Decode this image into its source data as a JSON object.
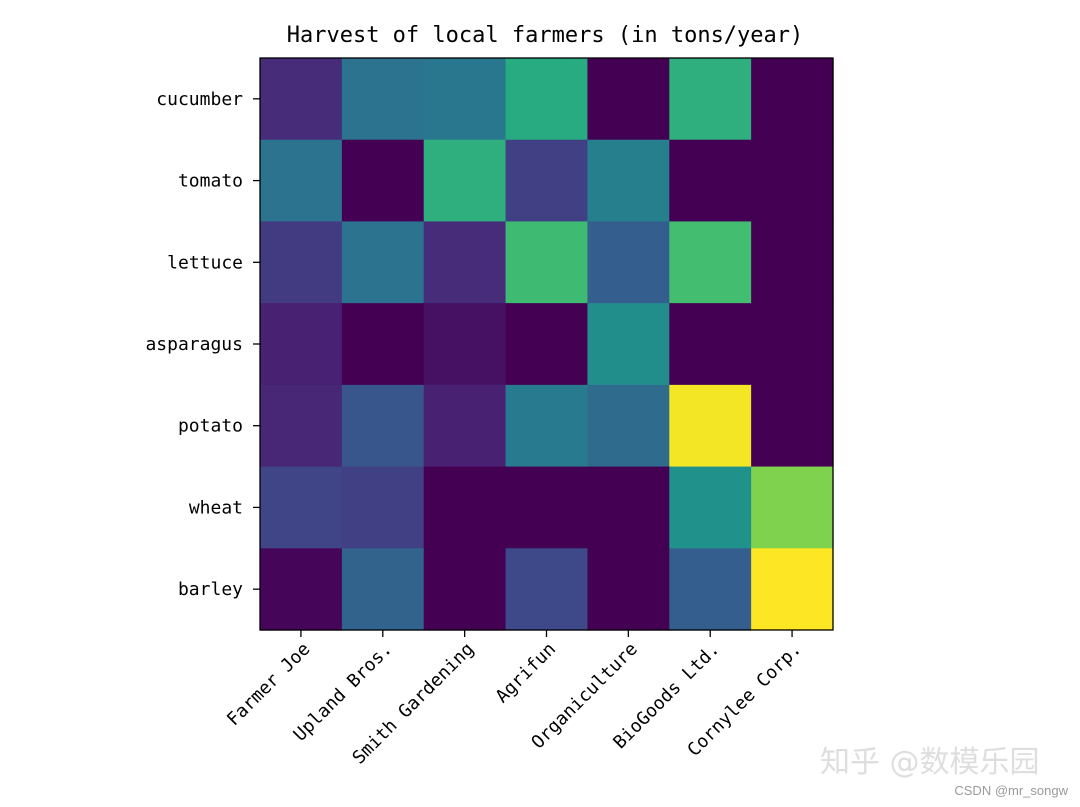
{
  "chart_data": {
    "type": "heatmap",
    "title": "Harvest of local farmers (in tons/year)",
    "x_categories": [
      "Farmer Joe",
      "Upland Bros.",
      "Smith Gardening",
      "Agrifun",
      "Organiculture",
      "BioGoods Ltd.",
      "Cornylee Corp."
    ],
    "y_categories": [
      "cucumber",
      "tomato",
      "lettuce",
      "asparagus",
      "potato",
      "wheat",
      "barley"
    ],
    "values": [
      [
        0.8,
        2.4,
        2.5,
        3.9,
        0.0,
        4.0,
        0.0
      ],
      [
        2.4,
        0.0,
        4.0,
        1.2,
        2.7,
        0.0,
        0.0
      ],
      [
        1.1,
        2.4,
        0.8,
        4.3,
        1.9,
        4.4,
        0.0
      ],
      [
        0.6,
        0.0,
        0.3,
        0.0,
        3.1,
        0.0,
        0.0
      ],
      [
        0.7,
        1.7,
        0.6,
        2.6,
        2.2,
        6.2,
        0.0
      ],
      [
        1.3,
        1.2,
        0.0,
        0.0,
        0.0,
        3.2,
        5.1
      ],
      [
        0.1,
        2.0,
        0.0,
        1.4,
        0.0,
        1.9,
        6.3
      ]
    ],
    "colormap": "viridis",
    "vmin": 0.0,
    "vmax": 6.3,
    "x_tick_rotation": 45,
    "colorbar": false,
    "grid": false
  },
  "watermark": {
    "main": "知乎 @数模乐园",
    "sub": "CSDN @mr_songw"
  }
}
